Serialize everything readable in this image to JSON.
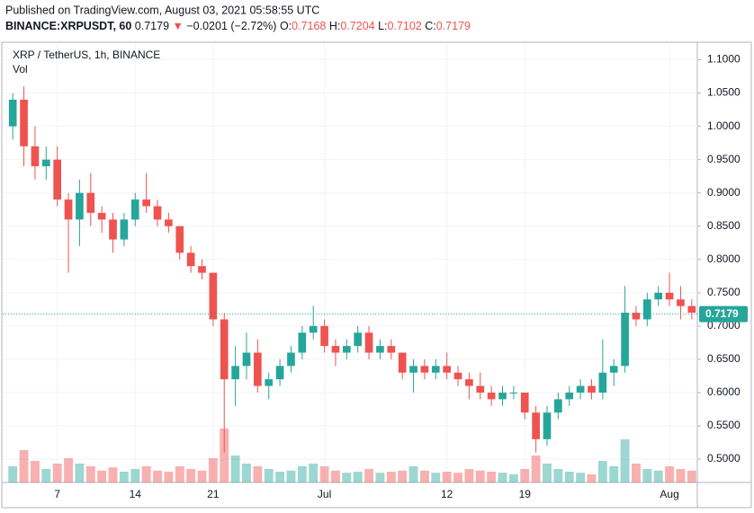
{
  "header": {
    "published": "Published on TradingView.com, August 03, 2021 05:58:55 UTC",
    "symbol": "BINANCE:XRPUSDT, 60",
    "price": "0.7179",
    "arrow": "▼",
    "change": "−0.0201 (−2.72%)",
    "o_label": "O:",
    "o": "0.7168",
    "h_label": "H:",
    "h": "0.7204",
    "l_label": "L:",
    "l": "0.7102",
    "c_label": "C:",
    "c": "0.7179"
  },
  "chart_data": {
    "type": "candlestick",
    "title": "XRP / TetherUS, 1h, BINANCE",
    "volume_label": "Vol",
    "categories": [
      null,
      null,
      null,
      null,
      "7",
      null,
      null,
      null,
      null,
      null,
      null,
      "14",
      null,
      null,
      null,
      null,
      null,
      null,
      "21",
      null,
      null,
      null,
      null,
      null,
      null,
      null,
      null,
      null,
      "Jul",
      null,
      null,
      null,
      null,
      null,
      null,
      null,
      null,
      null,
      null,
      "12",
      null,
      null,
      null,
      null,
      null,
      null,
      "19",
      null,
      null,
      null,
      null,
      null,
      null,
      null,
      null,
      null,
      null,
      null,
      null,
      "Aug",
      null,
      null
    ],
    "open": [
      1.0,
      1.04,
      0.97,
      0.94,
      0.95,
      0.89,
      0.86,
      0.9,
      0.87,
      0.86,
      0.83,
      0.86,
      0.89,
      0.88,
      0.86,
      0.85,
      0.81,
      0.79,
      0.78,
      0.71,
      0.62,
      0.64,
      0.66,
      0.61,
      0.62,
      0.64,
      0.66,
      0.69,
      0.7,
      0.67,
      0.66,
      0.67,
      0.69,
      0.66,
      0.67,
      0.66,
      0.63,
      0.64,
      0.63,
      0.64,
      0.63,
      0.62,
      0.61,
      0.6,
      0.59,
      0.6,
      0.6,
      0.57,
      0.53,
      0.57,
      0.59,
      0.6,
      0.61,
      0.6,
      0.63,
      0.64,
      0.72,
      0.71,
      0.74,
      0.75,
      0.74,
      0.73
    ],
    "high": [
      1.05,
      1.06,
      1.0,
      0.97,
      0.97,
      0.9,
      0.92,
      0.93,
      0.88,
      0.87,
      0.87,
      0.9,
      0.93,
      0.89,
      0.87,
      0.85,
      0.82,
      0.8,
      0.78,
      0.72,
      0.67,
      0.69,
      0.68,
      0.63,
      0.65,
      0.67,
      0.7,
      0.73,
      0.71,
      0.68,
      0.68,
      0.7,
      0.7,
      0.68,
      0.68,
      0.66,
      0.65,
      0.65,
      0.65,
      0.66,
      0.64,
      0.63,
      0.63,
      0.61,
      0.61,
      0.61,
      0.6,
      0.58,
      0.58,
      0.6,
      0.61,
      0.62,
      0.62,
      0.68,
      0.65,
      0.76,
      0.73,
      0.75,
      0.76,
      0.78,
      0.76,
      0.74
    ],
    "low": [
      0.98,
      0.94,
      0.92,
      0.92,
      0.88,
      0.78,
      0.82,
      0.85,
      0.84,
      0.81,
      0.82,
      0.85,
      0.87,
      0.85,
      0.84,
      0.8,
      0.78,
      0.77,
      0.7,
      0.51,
      0.58,
      0.62,
      0.6,
      0.59,
      0.61,
      0.63,
      0.65,
      0.68,
      0.66,
      0.64,
      0.65,
      0.66,
      0.65,
      0.65,
      0.65,
      0.62,
      0.6,
      0.62,
      0.62,
      0.62,
      0.61,
      0.59,
      0.59,
      0.58,
      0.58,
      0.59,
      0.56,
      0.51,
      0.52,
      0.56,
      0.58,
      0.59,
      0.59,
      0.59,
      0.61,
      0.63,
      0.7,
      0.7,
      0.73,
      0.73,
      0.71,
      0.71
    ],
    "close": [
      1.04,
      0.97,
      0.94,
      0.95,
      0.89,
      0.86,
      0.9,
      0.87,
      0.86,
      0.83,
      0.86,
      0.89,
      0.88,
      0.86,
      0.85,
      0.81,
      0.79,
      0.78,
      0.71,
      0.62,
      0.64,
      0.66,
      0.61,
      0.62,
      0.64,
      0.66,
      0.69,
      0.7,
      0.67,
      0.66,
      0.67,
      0.69,
      0.66,
      0.67,
      0.66,
      0.63,
      0.64,
      0.63,
      0.64,
      0.63,
      0.62,
      0.61,
      0.6,
      0.59,
      0.6,
      0.6,
      0.57,
      0.53,
      0.57,
      0.59,
      0.6,
      0.61,
      0.6,
      0.63,
      0.64,
      0.72,
      0.71,
      0.74,
      0.75,
      0.74,
      0.73,
      0.72
    ],
    "volume": [
      30,
      60,
      40,
      25,
      35,
      45,
      35,
      30,
      22,
      28,
      20,
      25,
      30,
      22,
      20,
      30,
      25,
      22,
      45,
      100,
      50,
      35,
      30,
      25,
      20,
      22,
      30,
      35,
      30,
      22,
      18,
      20,
      25,
      18,
      20,
      22,
      30,
      22,
      18,
      20,
      18,
      25,
      22,
      20,
      18,
      15,
      25,
      50,
      35,
      25,
      20,
      18,
      15,
      40,
      30,
      80,
      35,
      25,
      22,
      30,
      25,
      22
    ],
    "up_color": "#26a69a",
    "down_color": "#ef5350",
    "ylim": [
      0.465,
      1.125
    ],
    "yticks": [
      {
        "value": 0.5,
        "label": "0.5000"
      },
      {
        "value": 0.55,
        "label": "0.5500"
      },
      {
        "value": 0.6,
        "label": "0.6000"
      },
      {
        "value": 0.65,
        "label": "0.6500"
      },
      {
        "value": 0.7,
        "label": "0.7000"
      },
      {
        "value": 0.75,
        "label": "0.7500"
      },
      {
        "value": 0.8,
        "label": "0.8000"
      },
      {
        "value": 0.85,
        "label": "0.8500"
      },
      {
        "value": 0.9,
        "label": "0.9000"
      },
      {
        "value": 0.95,
        "label": "0.9500"
      },
      {
        "value": 1.0,
        "label": "1.0000"
      },
      {
        "value": 1.05,
        "label": "1.0500"
      },
      {
        "value": 1.1,
        "label": "1.1000"
      }
    ],
    "last_price": 0.7179,
    "grid": true
  }
}
